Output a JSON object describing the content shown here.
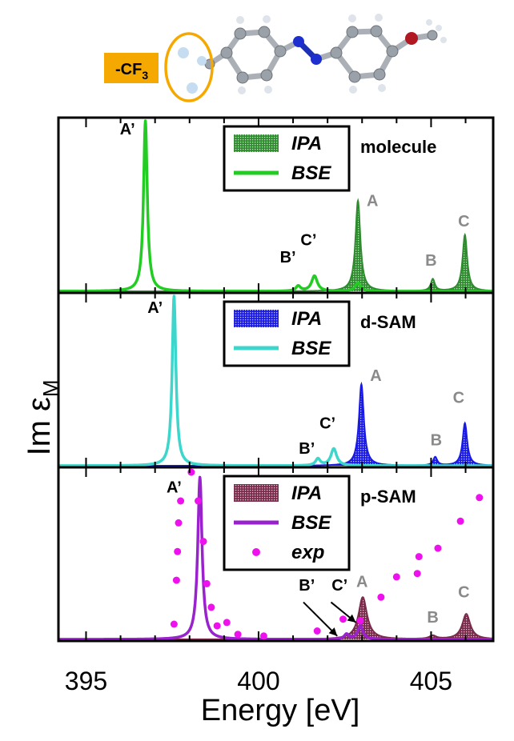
{
  "molecule_tag": "-CF",
  "molecule_tag_sub": "3",
  "colors": {
    "tag_bg": "#f5a800",
    "ring": "#f5a800",
    "peak_label_gray": "#8a8a8a",
    "exp": "#ee11ee"
  },
  "chart_data": {
    "type": "line",
    "xlabel": "Energy [eV]",
    "ylabel": "Im ε",
    "ylabel_sub": "M",
    "xlim": [
      394.2,
      406.8
    ],
    "xticks": [
      395,
      400,
      405
    ],
    "xtick_labels": [
      "395",
      "400",
      "405"
    ],
    "panels": [
      {
        "name": "molecule",
        "colors": {
          "ipa": "#2e8b2e",
          "bse": "#22cc22"
        },
        "legend": [
          "IPA",
          "BSE"
        ],
        "series": [
          {
            "name": "IPA",
            "peaks": [
              {
                "e": 402.88,
                "h": 0.53,
                "w": 0.085
              },
              {
                "e": 405.05,
                "h": 0.07,
                "w": 0.07
              },
              {
                "e": 405.98,
                "h": 0.33,
                "w": 0.08
              }
            ]
          },
          {
            "name": "BSE",
            "peaks": [
              {
                "e": 396.72,
                "h": 1.0,
                "w": 0.065
              },
              {
                "e": 401.15,
                "h": 0.03,
                "w": 0.08
              },
              {
                "e": 401.62,
                "h": 0.09,
                "w": 0.1
              },
              {
                "e": 402.88,
                "h": 0.05,
                "w": 0.09
              }
            ]
          }
        ],
        "peak_labels": [
          {
            "text": "A’",
            "e": 396.2,
            "y": 0.92,
            "kind": "bse"
          },
          {
            "text": "B’",
            "e": 400.85,
            "y": 0.17,
            "kind": "bse"
          },
          {
            "text": "C’",
            "e": 401.45,
            "y": 0.27,
            "kind": "bse"
          },
          {
            "text": "A",
            "e": 403.3,
            "y": 0.5,
            "kind": "ipa"
          },
          {
            "text": "B",
            "e": 405.0,
            "y": 0.15,
            "kind": "ipa"
          },
          {
            "text": "C",
            "e": 405.95,
            "y": 0.38,
            "kind": "ipa"
          }
        ]
      },
      {
        "name": "d-SAM",
        "colors": {
          "ipa": "#1a1ae6",
          "bse": "#3cd6cc"
        },
        "legend": [
          "IPA",
          "BSE"
        ],
        "series": [
          {
            "name": "IPA",
            "peaks": [
              {
                "e": 402.98,
                "h": 0.48,
                "w": 0.085
              },
              {
                "e": 405.12,
                "h": 0.05,
                "w": 0.07
              },
              {
                "e": 405.98,
                "h": 0.25,
                "w": 0.08
              }
            ]
          },
          {
            "name": "BSE",
            "peaks": [
              {
                "e": 397.55,
                "h": 1.0,
                "w": 0.065
              },
              {
                "e": 401.72,
                "h": 0.04,
                "w": 0.08
              },
              {
                "e": 402.18,
                "h": 0.1,
                "w": 0.1
              }
            ]
          }
        ],
        "peak_labels": [
          {
            "text": "A’",
            "e": 397.0,
            "y": 0.9,
            "kind": "bse"
          },
          {
            "text": "B’",
            "e": 401.4,
            "y": 0.07,
            "kind": "bse"
          },
          {
            "text": "C’",
            "e": 402.0,
            "y": 0.22,
            "kind": "bse"
          },
          {
            "text": "A",
            "e": 403.4,
            "y": 0.5,
            "kind": "ipa"
          },
          {
            "text": "B",
            "e": 405.15,
            "y": 0.12,
            "kind": "ipa"
          },
          {
            "text": "C",
            "e": 405.8,
            "y": 0.37,
            "kind": "ipa"
          }
        ]
      },
      {
        "name": "p-SAM",
        "colors": {
          "ipa": "#7a2a4a",
          "bse": "#9922cc"
        },
        "legend": [
          "IPA",
          "BSE",
          "exp"
        ],
        "series": [
          {
            "name": "IPA",
            "peaks": [
              {
                "e": 403.02,
                "h": 0.25,
                "w": 0.15
              },
              {
                "e": 405.05,
                "h": 0.02,
                "w": 0.12
              },
              {
                "e": 406.02,
                "h": 0.15,
                "w": 0.14
              }
            ]
          },
          {
            "name": "BSE",
            "peaks": [
              {
                "e": 398.3,
                "h": 0.96,
                "w": 0.075
              },
              {
                "e": 402.55,
                "h": 0.03,
                "w": 0.08
              },
              {
                "e": 402.95,
                "h": 0.08,
                "w": 0.09
              }
            ]
          },
          {
            "name": "exp",
            "points": [
              [
                397.55,
                0.09
              ],
              [
                397.62,
                0.35
              ],
              [
                397.65,
                0.52
              ],
              [
                397.68,
                0.69
              ],
              [
                397.74,
                0.82
              ],
              [
                398.05,
                0.99
              ],
              [
                398.25,
                0.82
              ],
              [
                398.4,
                0.58
              ],
              [
                398.5,
                0.33
              ],
              [
                398.63,
                0.19
              ],
              [
                398.8,
                0.08
              ],
              [
                399.08,
                0.1
              ],
              [
                399.4,
                0.03
              ],
              [
                400.15,
                0.02
              ],
              [
                401.7,
                0.05
              ],
              [
                402.45,
                0.12
              ],
              [
                402.95,
                0.11
              ],
              [
                403.55,
                0.25
              ],
              [
                404.0,
                0.37
              ],
              [
                404.6,
                0.39
              ],
              [
                404.65,
                0.49
              ],
              [
                405.2,
                0.54
              ],
              [
                405.85,
                0.7
              ],
              [
                406.4,
                0.84
              ]
            ]
          }
        ],
        "peak_labels": [
          {
            "text": "A’",
            "e": 397.55,
            "y": 0.87,
            "kind": "bse"
          },
          {
            "text": "B’",
            "e": 401.4,
            "y": 0.29,
            "kind": "bse"
          },
          {
            "text": "C’",
            "e": 402.35,
            "y": 0.29,
            "kind": "bse"
          },
          {
            "text": "A",
            "e": 403.0,
            "y": 0.31,
            "kind": "ipa"
          },
          {
            "text": "B",
            "e": 405.05,
            "y": 0.1,
            "kind": "ipa"
          },
          {
            "text": "C",
            "e": 405.95,
            "y": 0.25,
            "kind": "ipa"
          }
        ],
        "arrows": [
          {
            "from": [
              401.3,
              0.22
            ],
            "to": [
              402.28,
              0.02
            ]
          },
          {
            "from": [
              402.1,
              0.22
            ],
            "to": [
              402.82,
              0.1
            ]
          }
        ]
      }
    ]
  }
}
